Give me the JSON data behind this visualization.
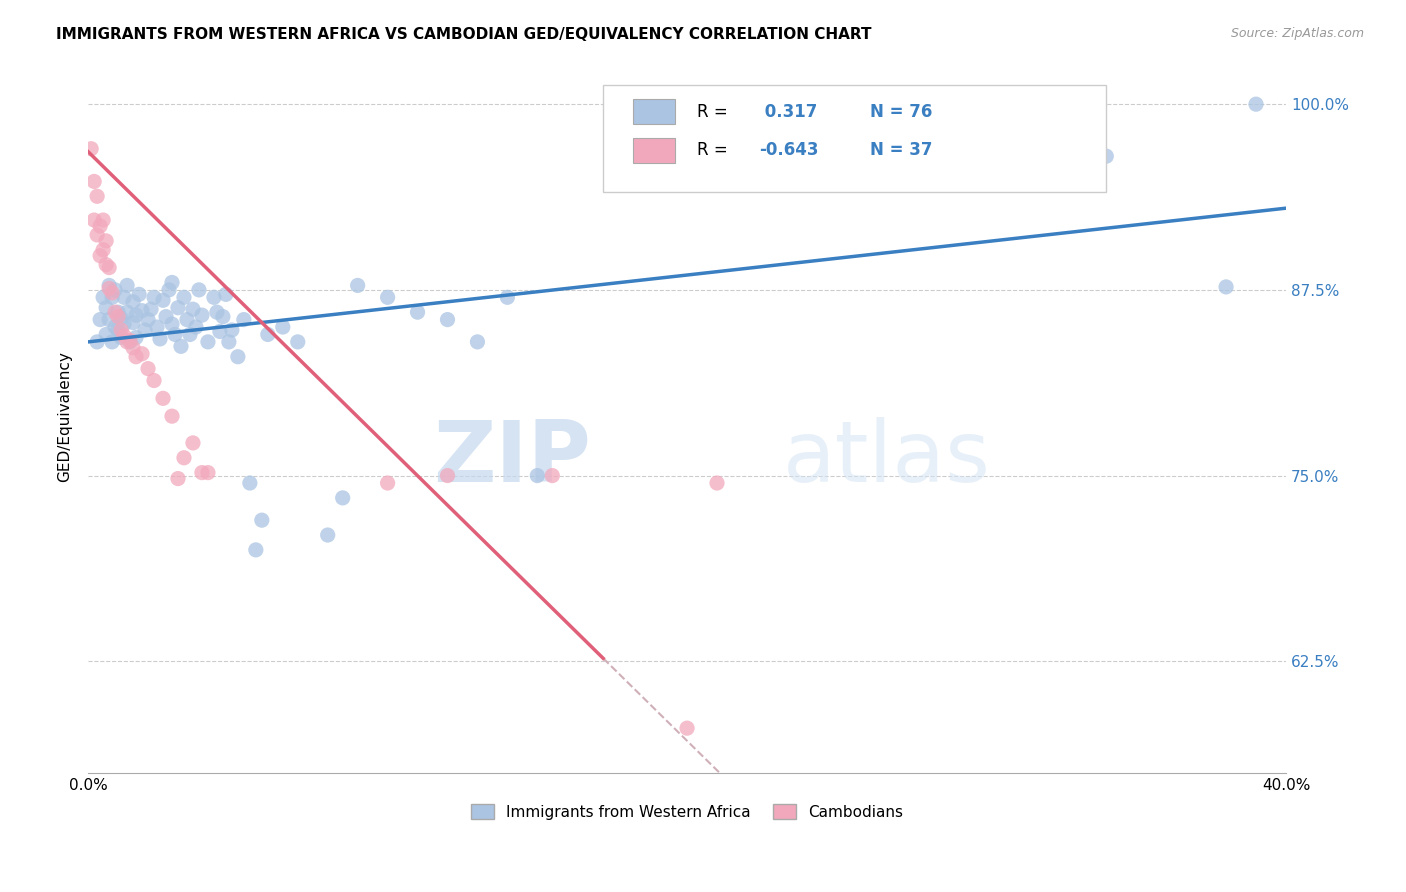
{
  "title": "IMMIGRANTS FROM WESTERN AFRICA VS CAMBODIAN GED/EQUIVALENCY CORRELATION CHART",
  "source": "Source: ZipAtlas.com",
  "ylabel": "GED/Equivalency",
  "ytick_labels": [
    "100.0%",
    "87.5%",
    "75.0%",
    "62.5%"
  ],
  "ytick_values": [
    1.0,
    0.875,
    0.75,
    0.625
  ],
  "legend_label1": "Immigrants from Western Africa",
  "legend_label2": "Cambodians",
  "R1": 0.317,
  "N1": 76,
  "R2": -0.643,
  "N2": 37,
  "color_blue": "#aac4e2",
  "color_pink": "#f2a8bc",
  "line_blue": "#3a7fc1",
  "line_pink": "#e0607a",
  "line_dashed": "#d0b0b8",
  "watermark_zip": "ZIP",
  "watermark_atlas": "atlas",
  "blue_points_x": [
    0.003,
    0.004,
    0.005,
    0.006,
    0.006,
    0.007,
    0.007,
    0.008,
    0.008,
    0.009,
    0.009,
    0.01,
    0.01,
    0.011,
    0.011,
    0.012,
    0.012,
    0.013,
    0.013,
    0.014,
    0.015,
    0.015,
    0.016,
    0.016,
    0.017,
    0.018,
    0.019,
    0.02,
    0.021,
    0.022,
    0.023,
    0.024,
    0.025,
    0.026,
    0.027,
    0.028,
    0.028,
    0.029,
    0.03,
    0.031,
    0.032,
    0.033,
    0.034,
    0.035,
    0.036,
    0.037,
    0.038,
    0.04,
    0.042,
    0.043,
    0.044,
    0.045,
    0.046,
    0.047,
    0.048,
    0.05,
    0.052,
    0.054,
    0.056,
    0.058,
    0.06,
    0.065,
    0.07,
    0.08,
    0.085,
    0.09,
    0.1,
    0.11,
    0.12,
    0.13,
    0.14,
    0.15,
    0.3,
    0.34,
    0.38,
    0.39
  ],
  "blue_points_y": [
    0.84,
    0.855,
    0.87,
    0.845,
    0.863,
    0.855,
    0.878,
    0.87,
    0.84,
    0.875,
    0.85,
    0.86,
    0.848,
    0.856,
    0.843,
    0.87,
    0.852,
    0.878,
    0.86,
    0.84,
    0.853,
    0.867,
    0.858,
    0.843,
    0.872,
    0.861,
    0.848,
    0.855,
    0.862,
    0.87,
    0.85,
    0.842,
    0.868,
    0.857,
    0.875,
    0.852,
    0.88,
    0.845,
    0.863,
    0.837,
    0.87,
    0.855,
    0.845,
    0.862,
    0.85,
    0.875,
    0.858,
    0.84,
    0.87,
    0.86,
    0.847,
    0.857,
    0.872,
    0.84,
    0.848,
    0.83,
    0.855,
    0.745,
    0.7,
    0.72,
    0.845,
    0.85,
    0.84,
    0.71,
    0.735,
    0.878,
    0.87,
    0.86,
    0.855,
    0.84,
    0.87,
    0.75,
    1.0,
    0.965,
    0.877,
    1.0
  ],
  "pink_points_x": [
    0.001,
    0.002,
    0.002,
    0.003,
    0.003,
    0.004,
    0.004,
    0.005,
    0.005,
    0.006,
    0.006,
    0.007,
    0.007,
    0.008,
    0.009,
    0.01,
    0.011,
    0.012,
    0.013,
    0.014,
    0.015,
    0.016,
    0.018,
    0.02,
    0.022,
    0.025,
    0.028,
    0.03,
    0.032,
    0.035,
    0.038,
    0.04,
    0.1,
    0.12,
    0.155,
    0.2,
    0.21
  ],
  "pink_points_y": [
    0.97,
    0.948,
    0.922,
    0.938,
    0.912,
    0.918,
    0.898,
    0.922,
    0.902,
    0.908,
    0.892,
    0.89,
    0.876,
    0.873,
    0.86,
    0.857,
    0.848,
    0.844,
    0.84,
    0.841,
    0.836,
    0.83,
    0.832,
    0.822,
    0.814,
    0.802,
    0.79,
    0.748,
    0.762,
    0.772,
    0.752,
    0.752,
    0.745,
    0.75,
    0.75,
    0.58,
    0.745
  ],
  "xmin": 0.0,
  "xmax": 0.4,
  "ymin": 0.55,
  "ymax": 1.03,
  "blue_line_x": [
    0.0,
    0.4
  ],
  "blue_line_y": [
    0.84,
    0.93
  ],
  "pink_line_x": [
    0.0,
    0.172
  ],
  "pink_line_y": [
    0.968,
    0.627
  ],
  "dashed_line_x": [
    0.172,
    0.4
  ],
  "dashed_line_y": [
    0.627,
    0.175
  ],
  "xtick_positions": [
    0.0,
    0.05,
    0.1,
    0.15,
    0.2,
    0.25,
    0.3,
    0.35,
    0.4
  ],
  "xtick_labels": [
    "0.0%",
    "",
    "",
    "",
    "",
    "",
    "",
    "",
    "40.0%"
  ]
}
